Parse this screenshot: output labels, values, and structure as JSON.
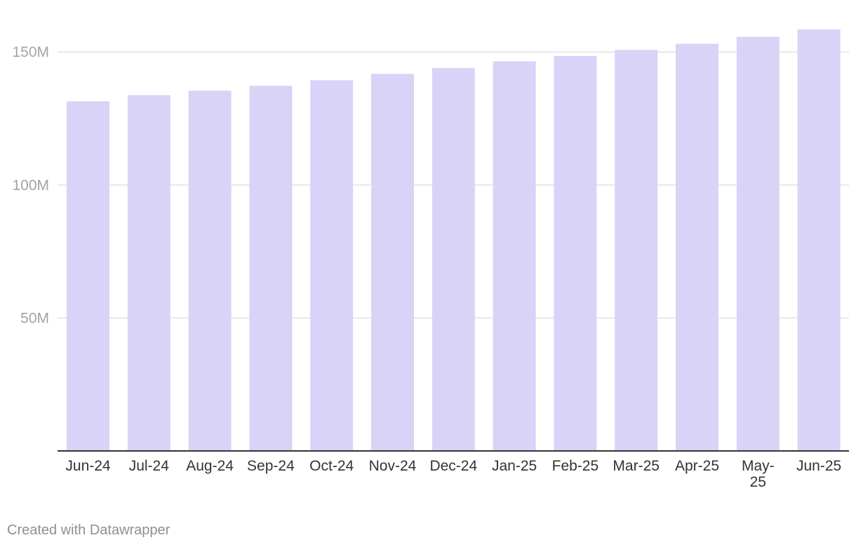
{
  "chart_data": {
    "type": "bar",
    "categories": [
      "Jun-24",
      "Jul-24",
      "Aug-24",
      "Sep-24",
      "Oct-24",
      "Nov-24",
      "Dec-24",
      "Jan-25",
      "Feb-25",
      "Mar-25",
      "Apr-25",
      "May-25",
      "Jun-25"
    ],
    "values": [
      131.5,
      133.8,
      135.5,
      137.3,
      139.4,
      141.8,
      144.0,
      146.5,
      148.5,
      150.8,
      153.1,
      155.7,
      158.5
    ],
    "title": "",
    "xlabel": "",
    "ylabel": "",
    "ylim": [
      0,
      160
    ],
    "yticks": [
      {
        "value": 50,
        "label": "50M"
      },
      {
        "value": 100,
        "label": "100M"
      },
      {
        "value": 150,
        "label": "150M"
      }
    ],
    "grid": true,
    "bar_color": "#d9d3f8",
    "grid_color": "#e2e2e2",
    "axis_color": "#333333"
  },
  "footer": {
    "credit": "Created with Datawrapper"
  }
}
